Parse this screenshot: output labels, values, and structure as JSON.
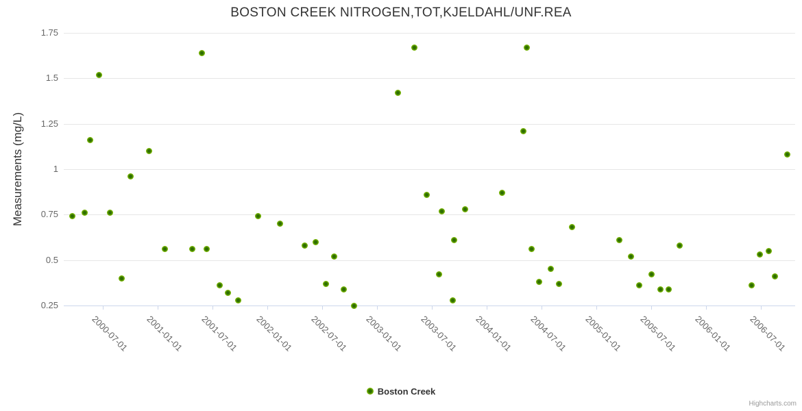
{
  "chart": {
    "title": "BOSTON CREEK NITROGEN,TOT,KJELDAHL/UNF.REA",
    "credit": "Highcharts.com"
  },
  "legend": {
    "label": "Boston Creek"
  },
  "colors": {
    "point_core": "#2e6e00",
    "point_ring": "#79b800",
    "point_edge": "#8fca2a",
    "gridline": "#e6e6e6",
    "axis_line": "#ccd6eb",
    "tick_label": "#666666",
    "title_text": "#333333",
    "credit_text": "#999999"
  },
  "chart_data": {
    "type": "scatter",
    "title": "BOSTON CREEK NITROGEN,TOT,KJELDAHL/UNF.REA",
    "xlabel": "",
    "ylabel": "Measurements (mg/L)",
    "ylim": [
      0.25,
      1.75
    ],
    "y_ticks": [
      0.25,
      0.5,
      0.75,
      1,
      1.25,
      1.5,
      1.75
    ],
    "x_ticks": [
      "2000-07-01",
      "2001-01-01",
      "2001-07-01",
      "2002-01-01",
      "2002-07-01",
      "2003-01-01",
      "2003-07-01",
      "2004-01-01",
      "2004-07-01",
      "2005-01-01",
      "2005-07-01",
      "2006-01-01",
      "2006-07-01"
    ],
    "x_range": [
      "2000-02-22",
      "2006-10-24"
    ],
    "x_label_rotation": 45,
    "grid": "horizontal",
    "legend_position": "bottom-center",
    "series": [
      {
        "name": "Boston Creek",
        "points": [
          [
            "2000-03-19",
            0.74
          ],
          [
            "2000-05-01",
            0.76
          ],
          [
            "2000-05-19",
            1.16
          ],
          [
            "2000-06-18",
            1.52
          ],
          [
            "2000-07-23",
            0.76
          ],
          [
            "2000-09-03",
            0.4
          ],
          [
            "2000-10-01",
            0.96
          ],
          [
            "2000-12-01",
            1.1
          ],
          [
            "2001-01-25",
            0.56
          ],
          [
            "2001-04-25",
            0.56
          ],
          [
            "2001-05-25",
            1.64
          ],
          [
            "2001-06-12",
            0.56
          ],
          [
            "2001-07-25",
            0.36
          ],
          [
            "2001-08-22",
            0.32
          ],
          [
            "2001-09-24",
            0.28
          ],
          [
            "2001-12-01",
            0.74
          ],
          [
            "2002-02-12",
            0.7
          ],
          [
            "2002-05-03",
            0.58
          ],
          [
            "2002-06-08",
            0.6
          ],
          [
            "2002-07-12",
            0.37
          ],
          [
            "2002-08-11",
            0.52
          ],
          [
            "2002-09-12",
            0.34
          ],
          [
            "2002-10-16",
            0.25
          ],
          [
            "2003-03-10",
            1.42
          ],
          [
            "2003-05-03",
            1.67
          ],
          [
            "2003-06-15",
            0.86
          ],
          [
            "2003-07-25",
            0.42
          ],
          [
            "2003-08-03",
            0.77
          ],
          [
            "2003-09-10",
            0.28
          ],
          [
            "2003-09-15",
            0.61
          ],
          [
            "2003-10-21",
            0.78
          ],
          [
            "2004-02-21",
            0.87
          ],
          [
            "2004-05-01",
            1.21
          ],
          [
            "2004-05-13",
            1.67
          ],
          [
            "2004-05-28",
            0.56
          ],
          [
            "2004-06-24",
            0.38
          ],
          [
            "2004-08-01",
            0.45
          ],
          [
            "2004-08-28",
            0.37
          ],
          [
            "2004-10-10",
            0.68
          ],
          [
            "2005-03-16",
            0.61
          ],
          [
            "2005-04-25",
            0.52
          ],
          [
            "2005-05-22",
            0.36
          ],
          [
            "2005-07-03",
            0.42
          ],
          [
            "2005-08-02",
            0.34
          ],
          [
            "2005-08-29",
            0.34
          ],
          [
            "2005-10-05",
            0.58
          ],
          [
            "2006-06-01",
            0.36
          ],
          [
            "2006-06-28",
            0.53
          ],
          [
            "2006-07-28",
            0.55
          ],
          [
            "2006-08-18",
            0.41
          ],
          [
            "2006-09-28",
            1.08
          ]
        ]
      }
    ]
  }
}
